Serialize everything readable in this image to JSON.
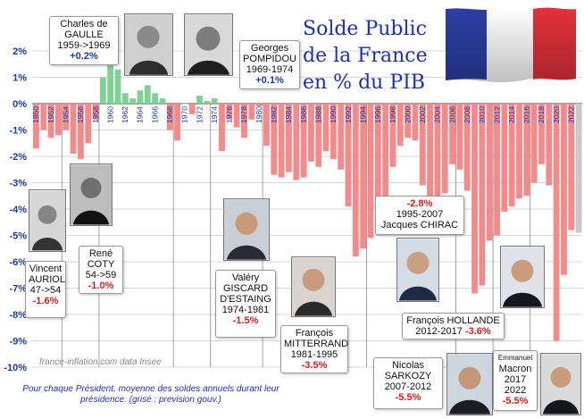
{
  "title": {
    "line1": "Solde Public",
    "line2": "de la France",
    "line3": "en % du PIB"
  },
  "watermark": "france-inflation.com   data Insee",
  "footnote": "Pour chaque Président, moyenne des soldes annuels durant leur présidence. (grisé : prevision gouv.)",
  "colors": {
    "positive": "#7fd195",
    "negative": "#f48a8a",
    "title": "#1f2fb5",
    "pos_text": "#1a3aa8",
    "neg_text": "#d21d1d"
  },
  "presidents": [
    {
      "id": "auriol",
      "lines": [
        "Vincent",
        "AURIOL",
        "47->54"
      ],
      "avg": "-1.6%",
      "sign": "neg",
      "icon": "portrait-auriol"
    },
    {
      "id": "coty",
      "lines": [
        "René",
        "COTY",
        "54->59"
      ],
      "avg": "-1.0%",
      "sign": "neg",
      "icon": "portrait-coty"
    },
    {
      "id": "degaulle",
      "lines": [
        "Charles de",
        "GAULLE",
        "1959->1969"
      ],
      "avg": "+0.2%",
      "sign": "pos",
      "icon": "portrait-de-gaulle"
    },
    {
      "id": "pompidou",
      "lines": [
        "Georges",
        "POMPIDOU",
        "1969-1974"
      ],
      "avg": "+0.1%",
      "sign": "pos",
      "icon": "portrait-pompidou"
    },
    {
      "id": "giscard",
      "lines": [
        "Valéry",
        "GISCARD",
        "D'ESTAING",
        "1974-1981"
      ],
      "avg": "-1.5%",
      "sign": "neg",
      "icon": "portrait-giscard"
    },
    {
      "id": "mitterrand",
      "lines": [
        "François",
        "MITTERRAND",
        "1981-1995"
      ],
      "avg": "-3.5%",
      "sign": "neg",
      "icon": "portrait-mitterrand"
    },
    {
      "id": "chirac",
      "lines": [
        "1995-2007",
        "Jacques CHIRAC"
      ],
      "avg": "-2.8%",
      "sign": "neg",
      "icon": "portrait-chirac"
    },
    {
      "id": "hollande",
      "lines": [
        "François HOLLANDE",
        "2012-2017"
      ],
      "avg": "-3.6%",
      "sign": "neg",
      "icon": "portrait-hollande"
    },
    {
      "id": "sarkozy",
      "lines": [
        "Nicolas",
        "SARKOZY",
        "2007-2012"
      ],
      "avg": "-5.5%",
      "sign": "neg",
      "icon": "portrait-sarkozy"
    },
    {
      "id": "macron",
      "lines": [
        "Emmanuel",
        "Macron",
        "2017",
        "2022"
      ],
      "avg": "-5.5%",
      "sign": "neg",
      "icon": "portrait-macron"
    }
  ],
  "chart_data": {
    "type": "bar",
    "title": "Solde Public de la France en % du PIB",
    "xlabel": "",
    "ylabel": "",
    "ylim": [
      -10,
      2
    ],
    "yticks": [
      "2%",
      "1%",
      "0%",
      "-1%",
      "-2%",
      "-3%",
      "-4%",
      "-5%",
      "-6%",
      "-7%",
      "-8%",
      "-9%",
      "-10%"
    ],
    "xticks": [
      "1950",
      "1952",
      "1954",
      "1956",
      "1958",
      "1960",
      "1962",
      "1964",
      "1966",
      "1968",
      "1970",
      "1972",
      "1974",
      "1976",
      "1978",
      "1980",
      "1982",
      "1984",
      "1986",
      "1988",
      "1990",
      "1992",
      "1994",
      "1996",
      "1998",
      "2000",
      "2002",
      "2004",
      "2006",
      "2008",
      "2010",
      "2012",
      "2014",
      "2016",
      "2018",
      "2020",
      "2022"
    ],
    "grid": true,
    "categories": [
      "1950",
      "1951",
      "1952",
      "1953",
      "1954",
      "1955",
      "1956",
      "1957",
      "1958",
      "1959",
      "1960",
      "1961",
      "1962",
      "1963",
      "1964",
      "1965",
      "1966",
      "1967",
      "1968",
      "1969",
      "1970",
      "1971",
      "1972",
      "1973",
      "1974",
      "1975",
      "1976",
      "1977",
      "1978",
      "1979",
      "1980",
      "1981",
      "1982",
      "1983",
      "1984",
      "1985",
      "1986",
      "1987",
      "1988",
      "1989",
      "1990",
      "1991",
      "1992",
      "1993",
      "1994",
      "1995",
      "1996",
      "1997",
      "1998",
      "1999",
      "2000",
      "2001",
      "2002",
      "2003",
      "2004",
      "2005",
      "2006",
      "2007",
      "2008",
      "2009",
      "2010",
      "2011",
      "2012",
      "2013",
      "2014",
      "2015",
      "2016",
      "2017",
      "2018",
      "2019",
      "2020",
      "2021",
      "2022",
      "2023"
    ],
    "values": [
      -1.7,
      -1.0,
      -1.3,
      -1.2,
      -1.0,
      -1.9,
      -2.1,
      -1.5,
      -0.6,
      1.0,
      1.5,
      1.3,
      0.4,
      0.2,
      0.5,
      0.7,
      0.4,
      0.2,
      -1.0,
      -1.4,
      0.0,
      -0.4,
      0.3,
      0.1,
      0.2,
      -1.8,
      -0.6,
      -0.9,
      -1.3,
      -0.6,
      -0.1,
      -1.6,
      -2.7,
      -2.8,
      -2.6,
      -2.9,
      -2.8,
      -2.2,
      -2.4,
      -1.8,
      -2.1,
      -2.5,
      -3.9,
      -5.8,
      -5.5,
      -5.1,
      -4.0,
      -3.5,
      -2.4,
      -1.6,
      -1.3,
      -1.4,
      -3.1,
      -3.9,
      -3.6,
      -3.4,
      -2.3,
      -2.5,
      -3.3,
      -7.2,
      -6.9,
      -5.2,
      -5.0,
      -4.1,
      -3.9,
      -3.6,
      -3.5,
      -3.0,
      -2.3,
      -3.1,
      -9.0,
      -6.5,
      -4.8,
      -4.9
    ],
    "forecast_from": "2023"
  }
}
